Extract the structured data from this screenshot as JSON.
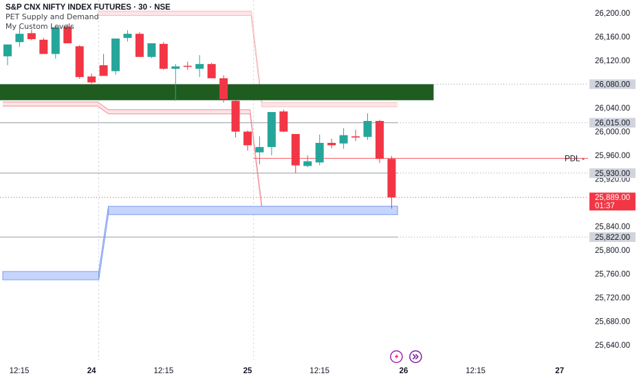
{
  "legend": {
    "symbol_line": "S&P CNX NIFTY INDEX FUTURES · 30 · NSE",
    "indicator_1": "PET Supply and Demand",
    "indicator_2": "My Custom Levels"
  },
  "colors": {
    "up": "#26a69a",
    "down": "#f23645",
    "supply_zone": "#1e5c20",
    "demand_zone": "#c5d5fb",
    "band": "#f2a0a6",
    "pdl": "#f7525f"
  },
  "icons": [
    "lightning-icon",
    "double-chevron-right-icon"
  ],
  "chart_data": {
    "type": "candlestick",
    "title": "S&P CNX NIFTY INDEX FUTURES · 30 · NSE",
    "ylim": [
      25600,
      26220
    ],
    "y_ticks": [
      {
        "value": 26200,
        "label": "26,200.00"
      },
      {
        "value": 26160,
        "label": "26,160.00"
      },
      {
        "value": 26120,
        "label": "26,120.00"
      },
      {
        "value": 26040,
        "label": "26,040.00"
      },
      {
        "value": 26000,
        "label": "26,000.00"
      },
      {
        "value": 25960,
        "label": "25,960.00"
      },
      {
        "value": 25920,
        "label": "25,920.00"
      },
      {
        "value": 25840,
        "label": "25,840.00"
      },
      {
        "value": 25800,
        "label": "25,800.00"
      },
      {
        "value": 25760,
        "label": "25,760.00"
      },
      {
        "value": 25720,
        "label": "25,720.00"
      },
      {
        "value": 25680,
        "label": "25,680.00"
      },
      {
        "value": 25640,
        "label": "25,640.00"
      }
    ],
    "x_ticks": [
      {
        "index": 0,
        "label": "12:15"
      },
      {
        "index": 7,
        "label": "24"
      },
      {
        "index": 13,
        "label": "12:15"
      },
      {
        "index": 20,
        "label": "25"
      },
      {
        "index": 26,
        "label": "12:15"
      },
      {
        "index": 33,
        "label": "26"
      },
      {
        "index": 39,
        "label": "12:15"
      },
      {
        "index": 46,
        "label": "27"
      }
    ],
    "day_separators": [
      7.6,
      20.5
    ],
    "candles": [
      {
        "o": 26127,
        "h": 26147,
        "l": 26112,
        "c": 26147
      },
      {
        "o": 26151,
        "h": 26176,
        "l": 26143,
        "c": 26165
      },
      {
        "o": 26166,
        "h": 26172,
        "l": 26154,
        "c": 26156
      },
      {
        "o": 26155,
        "h": 26158,
        "l": 26131,
        "c": 26131
      },
      {
        "o": 26131,
        "h": 26176,
        "l": 26123,
        "c": 26176
      },
      {
        "o": 26177,
        "h": 26181,
        "l": 26149,
        "c": 26149
      },
      {
        "o": 26144,
        "h": 26146,
        "l": 26089,
        "c": 26092
      },
      {
        "o": 26093,
        "h": 26098,
        "l": 26081,
        "c": 26083
      },
      {
        "o": 26112,
        "h": 26131,
        "l": 26095,
        "c": 26094
      },
      {
        "o": 26102,
        "h": 26157,
        "l": 26096,
        "c": 26157
      },
      {
        "o": 26158,
        "h": 26171,
        "l": 26152,
        "c": 26165
      },
      {
        "o": 26165,
        "h": 26168,
        "l": 26126,
        "c": 26126
      },
      {
        "o": 26126,
        "h": 26148,
        "l": 26124,
        "c": 26149
      },
      {
        "o": 26148,
        "h": 26151,
        "l": 26104,
        "c": 26106
      },
      {
        "o": 26106,
        "h": 26114,
        "l": 26052,
        "c": 26110
      },
      {
        "o": 26111,
        "h": 26118,
        "l": 26104,
        "c": 26110
      },
      {
        "o": 26106,
        "h": 26129,
        "l": 26092,
        "c": 26114
      },
      {
        "o": 26114,
        "h": 26116,
        "l": 26090,
        "c": 26090
      },
      {
        "o": 26090,
        "h": 26095,
        "l": 26049,
        "c": 26055
      },
      {
        "o": 26052,
        "h": 26054,
        "l": 25990,
        "c": 26000
      },
      {
        "o": 26000,
        "h": 26002,
        "l": 25968,
        "c": 25977
      },
      {
        "o": 25965,
        "h": 25992,
        "l": 25945,
        "c": 25974
      },
      {
        "o": 25974,
        "h": 26033,
        "l": 25960,
        "c": 26033
      },
      {
        "o": 26034,
        "h": 26037,
        "l": 25999,
        "c": 26000
      },
      {
        "o": 25996,
        "h": 25996,
        "l": 25930,
        "c": 25943
      },
      {
        "o": 25942,
        "h": 25960,
        "l": 25940,
        "c": 25950
      },
      {
        "o": 25948,
        "h": 25995,
        "l": 25943,
        "c": 25981
      },
      {
        "o": 25981,
        "h": 25988,
        "l": 25972,
        "c": 25977
      },
      {
        "o": 25980,
        "h": 26006,
        "l": 25971,
        "c": 25994
      },
      {
        "o": 25992,
        "h": 26003,
        "l": 25984,
        "c": 25990
      },
      {
        "o": 25991,
        "h": 26031,
        "l": 25986,
        "c": 26018
      },
      {
        "o": 26018,
        "h": 26020,
        "l": 25947,
        "c": 25954
      },
      {
        "o": 25954,
        "h": 25959,
        "l": 25870,
        "c": 25889
      }
    ],
    "levels": [
      {
        "value": 26080,
        "label": "26,080.00",
        "style": "dotted",
        "color": "#9598a1",
        "tag_bg": "#d1d4dc",
        "tag_fg": "#131722"
      },
      {
        "value": 26015,
        "label": "26,015.00",
        "style": "solid",
        "color": "#9598a1",
        "tag_bg": "#d1d4dc",
        "tag_fg": "#131722"
      },
      {
        "value": 25930,
        "label": "25,930.00",
        "style": "solid",
        "color": "#9598a1",
        "tag_bg": "#d1d4dc",
        "tag_fg": "#131722"
      },
      {
        "value": 25822,
        "label": "25,822.00",
        "style": "solid",
        "color": "#9598a1",
        "tag_bg": "#d1d4dc",
        "tag_fg": "#131722"
      }
    ],
    "pdl": {
      "value": 25955,
      "label": "PDL -"
    },
    "last_price": {
      "value": 25889,
      "label": "25,889.00",
      "countdown": "01:37"
    },
    "supply_zone": {
      "top": 26080,
      "bottom": 26053,
      "x_end_index": 35.5
    },
    "demand_zone": {
      "x_end_index": 32.5,
      "segments": [
        {
          "from": -0.4,
          "to": 7.6,
          "top": 25764,
          "bottom": 25750
        },
        {
          "from": 8.4,
          "to": 32.5,
          "top": 25874,
          "bottom": 25860
        }
      ]
    },
    "upper_band": [
      [
        7.5,
        26203
      ],
      [
        20.3,
        26203
      ],
      [
        21.2,
        26049
      ],
      [
        32.5,
        26049
      ]
    ],
    "lower_band": [
      [
        -0.4,
        26050
      ],
      [
        7.5,
        26050
      ],
      [
        8.4,
        26037
      ],
      [
        20.2,
        26037
      ],
      [
        21.2,
        25874
      ],
      [
        32.5,
        25874
      ]
    ]
  }
}
